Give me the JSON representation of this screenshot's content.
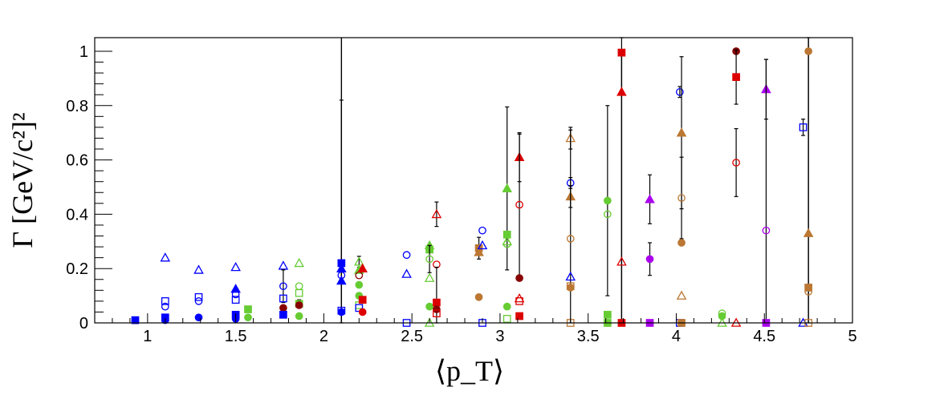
{
  "chart_data": {
    "type": "scatter",
    "title": "",
    "xlabel": "⟨p_T⟩",
    "ylabel": "Γ [GeV/c²]²",
    "xlim": [
      0.7,
      5.0
    ],
    "ylim": [
      0,
      1.05
    ],
    "x_ticks": [
      1,
      1.5,
      2,
      2.5,
      3,
      3.5,
      4,
      4.5,
      5
    ],
    "x_tick_labels": [
      "1",
      "1.5",
      "2",
      "2.5",
      "3",
      "3.5",
      "4",
      "4.5",
      "5"
    ],
    "y_ticks": [
      0,
      0.2,
      0.4,
      0.6,
      0.8,
      1
    ],
    "y_tick_labels": [
      "0",
      "0.2",
      "0.4",
      "0.6",
      "0.8",
      "1"
    ],
    "grid": false,
    "legend": "none",
    "colors": {
      "blue": "#0000ff",
      "green": "#66cc33",
      "red": "#dd0000",
      "orange": "#bb7733",
      "purple": "#aa00ee",
      "darkred": "#880000",
      "black": "#000000"
    },
    "points": [
      {
        "x": 0.93,
        "y": 0.01,
        "c": "blue",
        "m": "sq-f"
      },
      {
        "x": 1.1,
        "y": 0.24,
        "c": "blue",
        "m": "tri-o"
      },
      {
        "x": 1.1,
        "y": 0.08,
        "c": "blue",
        "m": "sq-o"
      },
      {
        "x": 1.1,
        "y": 0.06,
        "c": "blue",
        "m": "circ-o"
      },
      {
        "x": 1.1,
        "y": 0.02,
        "c": "blue",
        "m": "sq-f"
      },
      {
        "x": 1.1,
        "y": 0.01,
        "c": "blue",
        "m": "circ-f"
      },
      {
        "x": 1.29,
        "y": 0.195,
        "c": "blue",
        "m": "tri-o"
      },
      {
        "x": 1.29,
        "y": 0.095,
        "c": "blue",
        "m": "sq-o"
      },
      {
        "x": 1.29,
        "y": 0.08,
        "c": "blue",
        "m": "circ-o"
      },
      {
        "x": 1.29,
        "y": 0.02,
        "c": "blue",
        "m": "circ-f"
      },
      {
        "x": 1.5,
        "y": 0.205,
        "c": "blue",
        "m": "tri-o"
      },
      {
        "x": 1.5,
        "y": 0.125,
        "c": "blue",
        "m": "tri-f"
      },
      {
        "x": 1.5,
        "y": 0.105,
        "c": "blue",
        "m": "circ-o"
      },
      {
        "x": 1.5,
        "y": 0.085,
        "c": "blue",
        "m": "sq-o"
      },
      {
        "x": 1.5,
        "y": 0.03,
        "c": "blue",
        "m": "sq-f"
      },
      {
        "x": 1.5,
        "y": 0.015,
        "c": "blue",
        "m": "circ-f"
      },
      {
        "x": 1.57,
        "y": 0.05,
        "c": "green",
        "m": "sq-f"
      },
      {
        "x": 1.57,
        "y": 0.02,
        "c": "green",
        "m": "circ-f"
      },
      {
        "x": 1.77,
        "y": 0.21,
        "c": "blue",
        "m": "tri-o"
      },
      {
        "x": 1.77,
        "y": 0.135,
        "c": "blue",
        "m": "circ-o",
        "e": 0.06
      },
      {
        "x": 1.77,
        "y": 0.09,
        "c": "blue",
        "m": "sq-o"
      },
      {
        "x": 1.77,
        "y": 0.055,
        "c": "darkred",
        "m": "circ-f"
      },
      {
        "x": 1.77,
        "y": 0.03,
        "c": "blue",
        "m": "sq-f"
      },
      {
        "x": 1.86,
        "y": 0.22,
        "c": "green",
        "m": "tri-o"
      },
      {
        "x": 1.86,
        "y": 0.135,
        "c": "green",
        "m": "circ-o"
      },
      {
        "x": 1.86,
        "y": 0.11,
        "c": "green",
        "m": "sq-o"
      },
      {
        "x": 1.86,
        "y": 0.07,
        "c": "green",
        "m": "sq-f",
        "e": 0.015
      },
      {
        "x": 1.86,
        "y": 0.065,
        "c": "darkred",
        "m": "circ-f"
      },
      {
        "x": 1.86,
        "y": 0.025,
        "c": "green",
        "m": "circ-f"
      },
      {
        "x": 2.1,
        "y": 0.22,
        "c": "blue",
        "m": "sq-f",
        "e": 0.6
      },
      {
        "x": 2.1,
        "y": 0.2,
        "c": "blue",
        "m": "tri-f"
      },
      {
        "x": 2.1,
        "y": 0.175,
        "c": "blue",
        "m": "circ-o"
      },
      {
        "x": 2.1,
        "y": 0.155,
        "c": "blue",
        "m": "tri-f"
      },
      {
        "x": 2.1,
        "y": 0.045,
        "c": "blue",
        "m": "sq-o"
      },
      {
        "x": 2.1,
        "y": 0.04,
        "c": "blue",
        "m": "circ-f"
      },
      {
        "x": 2.2,
        "y": 0.225,
        "c": "green",
        "m": "tri-o",
        "e": 0.02
      },
      {
        "x": 2.2,
        "y": 0.195,
        "c": "green",
        "m": "tri-f"
      },
      {
        "x": 2.2,
        "y": 0.175,
        "c": "darkred",
        "m": "circ-o"
      },
      {
        "x": 2.2,
        "y": 0.14,
        "c": "green",
        "m": "circ-f"
      },
      {
        "x": 2.2,
        "y": 0.1,
        "c": "green",
        "m": "circ-f"
      },
      {
        "x": 2.2,
        "y": 0.065,
        "c": "green",
        "m": "sq-o"
      },
      {
        "x": 2.2,
        "y": 0.055,
        "c": "blue",
        "m": "sq-o"
      },
      {
        "x": 2.22,
        "y": 0.2,
        "c": "red",
        "m": "tri-f"
      },
      {
        "x": 2.22,
        "y": 0.085,
        "c": "red",
        "m": "sq-f"
      },
      {
        "x": 2.22,
        "y": 0.04,
        "c": "red",
        "m": "circ-f"
      },
      {
        "x": 2.47,
        "y": 0.25,
        "c": "blue",
        "m": "circ-o"
      },
      {
        "x": 2.47,
        "y": 0.18,
        "c": "blue",
        "m": "tri-o"
      },
      {
        "x": 2.47,
        "y": 0.0,
        "c": "blue",
        "m": "sq-o"
      },
      {
        "x": 2.6,
        "y": 0.285,
        "c": "green",
        "m": "tri-f"
      },
      {
        "x": 2.6,
        "y": 0.27,
        "c": "green",
        "m": "sq-f"
      },
      {
        "x": 2.6,
        "y": 0.235,
        "c": "green",
        "m": "circ-o",
        "e": 0.05
      },
      {
        "x": 2.6,
        "y": 0.165,
        "c": "green",
        "m": "tri-o"
      },
      {
        "x": 2.6,
        "y": 0.06,
        "c": "green",
        "m": "circ-f"
      },
      {
        "x": 2.6,
        "y": 0.0,
        "c": "green",
        "m": "tri-o"
      },
      {
        "x": 2.64,
        "y": 0.4,
        "c": "red",
        "m": "tri-o",
        "e": 0.045
      },
      {
        "x": 2.64,
        "y": 0.215,
        "c": "red",
        "m": "circ-o"
      },
      {
        "x": 2.64,
        "y": 0.075,
        "c": "red",
        "m": "sq-f",
        "e": 0.13
      },
      {
        "x": 2.64,
        "y": 0.05,
        "c": "darkred",
        "m": "circ-f"
      },
      {
        "x": 2.64,
        "y": 0.035,
        "c": "red",
        "m": "sq-o"
      },
      {
        "x": 2.88,
        "y": 0.275,
        "c": "orange",
        "m": "sq-f",
        "e": 0.04
      },
      {
        "x": 2.88,
        "y": 0.26,
        "c": "orange",
        "m": "tri-f"
      },
      {
        "x": 2.88,
        "y": 0.095,
        "c": "orange",
        "m": "circ-f"
      },
      {
        "x": 2.9,
        "y": 0.34,
        "c": "blue",
        "m": "circ-o"
      },
      {
        "x": 2.9,
        "y": 0.285,
        "c": "blue",
        "m": "tri-o"
      },
      {
        "x": 2.9,
        "y": 0.0,
        "c": "blue",
        "m": "sq-o"
      },
      {
        "x": 3.04,
        "y": 0.495,
        "c": "green",
        "m": "tri-f",
        "e": 0.3
      },
      {
        "x": 3.04,
        "y": 0.325,
        "c": "green",
        "m": "sq-f"
      },
      {
        "x": 3.04,
        "y": 0.3,
        "c": "green",
        "m": "tri-o"
      },
      {
        "x": 3.04,
        "y": 0.29,
        "c": "green",
        "m": "circ-o"
      },
      {
        "x": 3.04,
        "y": 0.06,
        "c": "green",
        "m": "circ-f"
      },
      {
        "x": 3.04,
        "y": 0.015,
        "c": "green",
        "m": "sq-o"
      },
      {
        "x": 3.11,
        "y": 0.61,
        "c": "red",
        "m": "tri-f",
        "e": 0.09
      },
      {
        "x": 3.11,
        "y": 0.435,
        "c": "red",
        "m": "circ-o",
        "e": 0.26
      },
      {
        "x": 3.11,
        "y": 0.165,
        "c": "darkred",
        "m": "circ-f"
      },
      {
        "x": 3.11,
        "y": 0.09,
        "c": "red",
        "m": "tri-o"
      },
      {
        "x": 3.11,
        "y": 0.08,
        "c": "red",
        "m": "sq-o"
      },
      {
        "x": 3.11,
        "y": 0.025,
        "c": "red",
        "m": "sq-f"
      },
      {
        "x": 3.4,
        "y": 0.68,
        "c": "orange",
        "m": "tri-o",
        "e": 0.04
      },
      {
        "x": 3.4,
        "y": 0.515,
        "c": "blue",
        "m": "circ-o",
        "e": 0.02
      },
      {
        "x": 3.4,
        "y": 0.465,
        "c": "orange",
        "m": "tri-f",
        "e": 0.04
      },
      {
        "x": 3.4,
        "y": 0.31,
        "c": "orange",
        "m": "circ-o",
        "e": 0.4
      },
      {
        "x": 3.4,
        "y": 0.17,
        "c": "blue",
        "m": "tri-o"
      },
      {
        "x": 3.4,
        "y": 0.135,
        "c": "orange",
        "m": "sq-o"
      },
      {
        "x": 3.4,
        "y": 0.13,
        "c": "orange",
        "m": "circ-f"
      },
      {
        "x": 3.4,
        "y": 0.0,
        "c": "orange",
        "m": "sq-o"
      },
      {
        "x": 3.61,
        "y": 0.45,
        "c": "green",
        "m": "circ-f",
        "e": 0.35
      },
      {
        "x": 3.61,
        "y": 0.4,
        "c": "green",
        "m": "circ-o"
      },
      {
        "x": 3.61,
        "y": 0.03,
        "c": "green",
        "m": "sq-f"
      },
      {
        "x": 3.61,
        "y": 0.0,
        "c": "green",
        "m": "sq-o"
      },
      {
        "x": 3.61,
        "y": 0.0,
        "c": "green",
        "m": "circ-f"
      },
      {
        "x": 3.69,
        "y": 0.995,
        "c": "red",
        "m": "sq-f",
        "e": 1.0
      },
      {
        "x": 3.69,
        "y": 0.85,
        "c": "red",
        "m": "tri-f"
      },
      {
        "x": 3.69,
        "y": 0.225,
        "c": "red",
        "m": "tri-o"
      },
      {
        "x": 3.69,
        "y": 0.0,
        "c": "red",
        "m": "sq-f"
      },
      {
        "x": 3.85,
        "y": 0.455,
        "c": "purple",
        "m": "tri-f",
        "e": 0.09
      },
      {
        "x": 3.85,
        "y": 0.235,
        "c": "purple",
        "m": "circ-f",
        "e": 0.06
      },
      {
        "x": 3.85,
        "y": 0.0,
        "c": "purple",
        "m": "sq-f"
      },
      {
        "x": 4.02,
        "y": 0.85,
        "c": "blue",
        "m": "circ-o",
        "e": 0.02
      },
      {
        "x": 4.02,
        "y": 0.0,
        "c": "blue",
        "m": "sq-o"
      },
      {
        "x": 4.03,
        "y": 0.7,
        "c": "orange",
        "m": "tri-f",
        "e": 0.28
      },
      {
        "x": 4.03,
        "y": 0.46,
        "c": "orange",
        "m": "circ-o",
        "e": 0.15
      },
      {
        "x": 4.03,
        "y": 0.295,
        "c": "orange",
        "m": "circ-f"
      },
      {
        "x": 4.03,
        "y": 0.1,
        "c": "orange",
        "m": "tri-o"
      },
      {
        "x": 4.03,
        "y": 0.0,
        "c": "orange",
        "m": "sq-f"
      },
      {
        "x": 4.26,
        "y": 0.035,
        "c": "green",
        "m": "circ-o"
      },
      {
        "x": 4.26,
        "y": 0.025,
        "c": "green",
        "m": "circ-f"
      },
      {
        "x": 4.26,
        "y": 0.0,
        "c": "green",
        "m": "tri-o"
      },
      {
        "x": 4.34,
        "y": 1.0,
        "c": "darkred",
        "m": "circ-f"
      },
      {
        "x": 4.34,
        "y": 0.905,
        "c": "red",
        "m": "sq-f",
        "e": 0.1
      },
      {
        "x": 4.34,
        "y": 0.59,
        "c": "red",
        "m": "circ-o",
        "e": 0.125
      },
      {
        "x": 4.34,
        "y": 0.0,
        "c": "red",
        "m": "tri-o"
      },
      {
        "x": 4.51,
        "y": 0.86,
        "c": "purple",
        "m": "tri-f",
        "e": 0.11
      },
      {
        "x": 4.51,
        "y": 0.34,
        "c": "purple",
        "m": "circ-o",
        "e": 0.63
      },
      {
        "x": 4.51,
        "y": 0.0,
        "c": "purple",
        "m": "sq-f"
      },
      {
        "x": 4.72,
        "y": 0.72,
        "c": "blue",
        "m": "sq-o",
        "e": 0.03
      },
      {
        "x": 4.72,
        "y": 0.0,
        "c": "blue",
        "m": "tri-o"
      },
      {
        "x": 4.75,
        "y": 1.0,
        "c": "orange",
        "m": "circ-f",
        "e": 1.1
      },
      {
        "x": 4.75,
        "y": 0.33,
        "c": "orange",
        "m": "tri-f"
      },
      {
        "x": 4.75,
        "y": 0.13,
        "c": "orange",
        "m": "sq-f"
      },
      {
        "x": 4.75,
        "y": 0.115,
        "c": "orange",
        "m": "circ-o"
      },
      {
        "x": 4.75,
        "y": 0.0,
        "c": "orange",
        "m": "sq-o"
      }
    ],
    "long_error_bars": [
      {
        "x": 2.1,
        "y": 0.22,
        "lo": 0.0,
        "hi": 1.05
      },
      {
        "x": 3.69,
        "y": 0.5,
        "lo": 0.0,
        "hi": 1.0
      },
      {
        "x": 4.75,
        "y": 0.5,
        "lo": 0.0,
        "hi": 1.05
      }
    ]
  }
}
